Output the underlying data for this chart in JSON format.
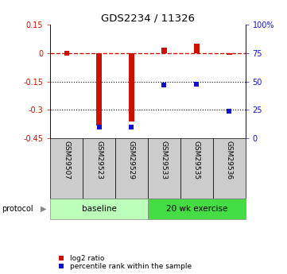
{
  "title": "GDS2234 / 11326",
  "samples": [
    "GSM29507",
    "GSM29523",
    "GSM29529",
    "GSM29533",
    "GSM29535",
    "GSM29536"
  ],
  "log2_ratio": [
    0.0,
    -0.38,
    -0.36,
    0.03,
    0.05,
    -0.01
  ],
  "percentile_rank": [
    null,
    10.0,
    10.0,
    47.0,
    48.0,
    24.0
  ],
  "ylim_left": [
    -0.45,
    0.15
  ],
  "ylim_right": [
    0,
    100
  ],
  "yticks_left": [
    0.15,
    0,
    -0.15,
    -0.3,
    -0.45
  ],
  "yticks_right": [
    100,
    75,
    50,
    25,
    0
  ],
  "hlines_dotted": [
    -0.15,
    -0.3
  ],
  "hline_dashed": 0,
  "red_color": "#cc1100",
  "blue_color": "#1111cc",
  "protocol_groups": [
    {
      "label": "baseline",
      "start": 0,
      "end": 3,
      "color": "#bbffbb"
    },
    {
      "label": "20 wk exercise",
      "start": 3,
      "end": 6,
      "color": "#44dd44"
    }
  ],
  "legend_red_label": "log2 ratio",
  "legend_blue_label": "percentile rank within the sample",
  "bar_width": 0.18
}
